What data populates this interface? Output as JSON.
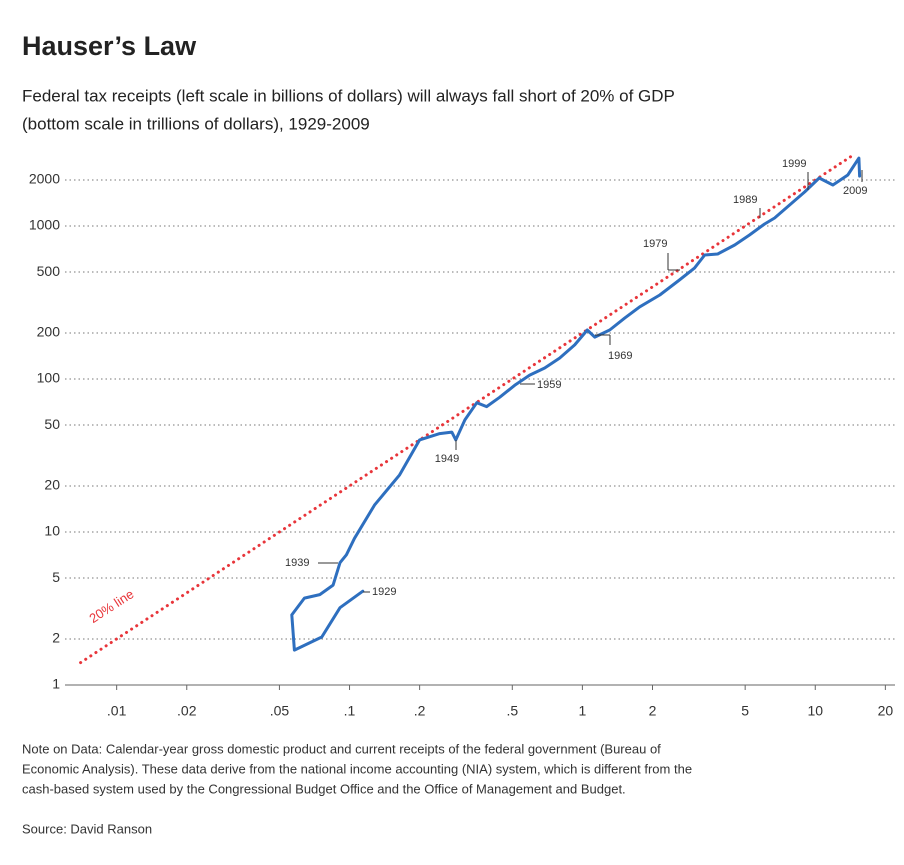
{
  "chart_data": {
    "type": "line",
    "title": "Hauser’s Law",
    "subtitle": [
      "Federal tax receipts (left scale in billions of dollars) will always fall short of 20% of GDP",
      "(bottom scale in trillions of dollars), 1929-2009"
    ],
    "xscale": "log",
    "yscale": "log",
    "xlim": [
      0.006,
      22
    ],
    "ylim": [
      1,
      3000
    ],
    "xticks": [
      {
        "value": 0.01,
        "label": ".01"
      },
      {
        "value": 0.02,
        "label": ".02"
      },
      {
        "value": 0.05,
        "label": ".05"
      },
      {
        "value": 0.1,
        "label": ".1"
      },
      {
        "value": 0.2,
        "label": ".2"
      },
      {
        "value": 0.5,
        "label": ".5"
      },
      1,
      2,
      5,
      10,
      20
    ],
    "yticks": [
      1,
      2,
      5,
      10,
      20,
      50,
      100,
      200,
      500,
      1000,
      2000
    ],
    "grid": true,
    "series": [
      {
        "name": "20% line",
        "color": "#e8353a",
        "style": "dotted",
        "x": [
          0.007,
          14.5
        ],
        "values": [
          1.4,
          2900
        ]
      },
      {
        "color": "#2e6fbf",
        "style": "solid",
        "x": [
          0.114,
          0.091,
          0.076,
          0.058,
          0.0565,
          0.064,
          0.0745,
          0.085,
          0.091,
          0.097,
          0.105,
          0.128,
          0.164,
          0.2,
          0.244,
          0.275,
          0.286,
          0.313,
          0.352,
          0.388,
          0.442,
          0.512,
          0.594,
          0.689,
          0.798,
          0.927,
          1.05,
          1.13,
          1.31,
          1.52,
          1.76,
          2.15,
          2.61,
          3.03,
          3.35,
          3.81,
          4.51,
          5.22,
          6.06,
          6.69,
          7.76,
          9.0,
          10.4,
          11.9,
          13.8,
          15.4,
          15.5
        ],
        "values": [
          4.1,
          3.2,
          2.06,
          1.69,
          2.87,
          3.7,
          3.9,
          4.5,
          6.3,
          7.1,
          9.1,
          15,
          23.6,
          40,
          44,
          45,
          40,
          54,
          70,
          66,
          76,
          91,
          106,
          118,
          137,
          167,
          209,
          188,
          209,
          250,
          296,
          354,
          444,
          531,
          646,
          656,
          751,
          873,
          1030,
          1128,
          1371,
          1667,
          2060,
          1853,
          2153,
          2780,
          2120
        ]
      }
    ],
    "annotations": [
      "1929",
      "1939",
      "1949",
      "1959",
      "1969",
      "1979",
      "1989",
      "1999",
      "2009"
    ],
    "notes": [
      "Note on Data: Calendar-year gross domestic product and current receipts of the federal government (Bureau of",
      "Economic Analysis). These data derive from the national income accounting (NIA) system, which is different from the",
      "cash-based system used by the Congressional Budget Office and the Office of Management and Budget."
    ],
    "source": "Source: David Ranson"
  }
}
